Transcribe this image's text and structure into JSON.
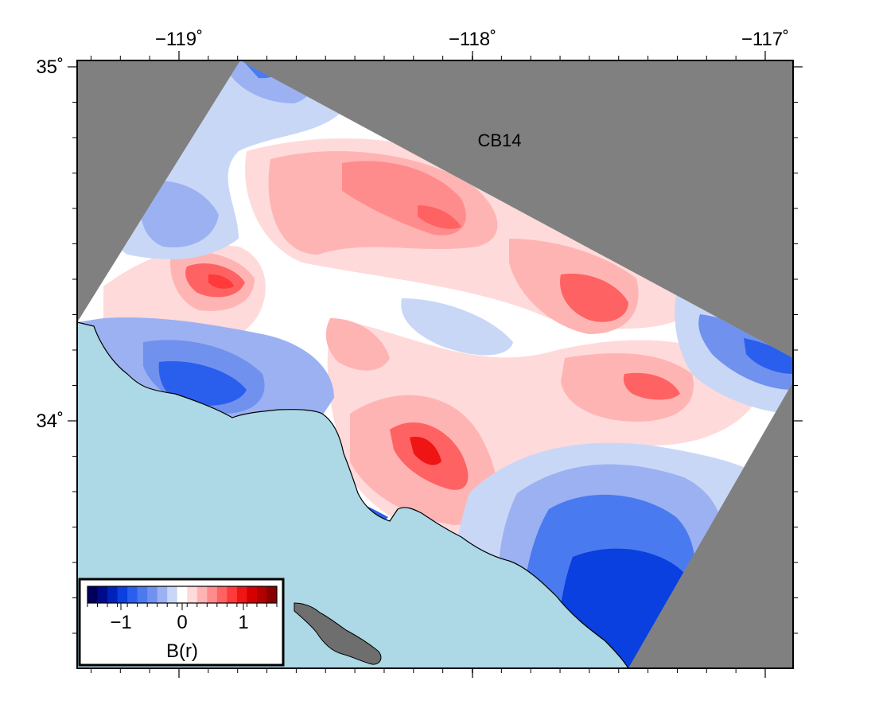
{
  "map": {
    "model_label": "CB14",
    "colors": {
      "no_data": "#808080",
      "ocean": "#add8e6",
      "island": "#6e6e6e",
      "frame": "#000000"
    },
    "lon_ticks": [
      "−119˚",
      "−118˚",
      "−117˚"
    ],
    "lat_ticks": [
      "35˚",
      "34˚"
    ]
  },
  "colorbar": {
    "title": "B(r)",
    "tick_labels": [
      "−1",
      "0",
      "1"
    ],
    "colors": [
      "#00005a",
      "#000a8c",
      "#0022bb",
      "#0a3fe0",
      "#2a5fee",
      "#4a7aef",
      "#7191ef",
      "#9cb1f2",
      "#c9d7f7",
      "#ffffff",
      "#ffdada",
      "#ffb4b4",
      "#ff8c8c",
      "#ff6262",
      "#ff3a3a",
      "#f01515",
      "#d40000",
      "#b00000",
      "#880000"
    ]
  }
}
